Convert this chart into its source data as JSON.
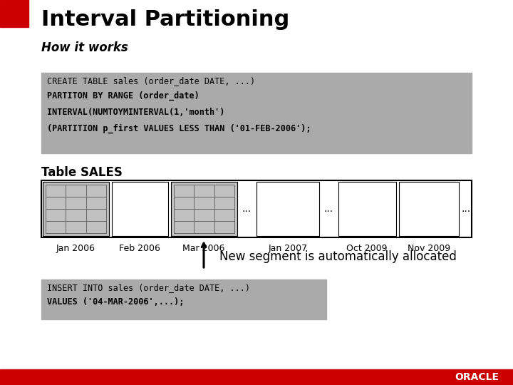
{
  "title": "Interval Partitioning",
  "subtitle": "How it works",
  "bg_color": "#ffffff",
  "red_square_color": "#cc0000",
  "oracle_red": "#cc0000",
  "code_bg": "#aaaaaa",
  "code_lines_top": [
    "CREATE TABLE sales (order_date DATE, ...)",
    "PARTITON BY RANGE (order_date)",
    "INTERVAL(NUMTOYMINTERVAL(1,'month')",
    "(PARTITION p_first VALUES LESS THAN ('01-FEB-2006');"
  ],
  "code_bold_lines": [
    1,
    2,
    3
  ],
  "table_label": "Table SALES",
  "arrow_label": "New segment is automatically allocated",
  "code_lines_bottom": [
    "INSERT INTO sales (order_date DATE, ...)",
    "VALUES ('04-MAR-2006',...);"
  ],
  "code_bold_bottom": [
    1
  ],
  "footer_text": "ORACLE",
  "title_fontsize": 22,
  "subtitle_fontsize": 12,
  "code_fontsize": 8.5,
  "label_fontsize": 9,
  "table_label_fontsize": 12,
  "arrow_label_fontsize": 12
}
